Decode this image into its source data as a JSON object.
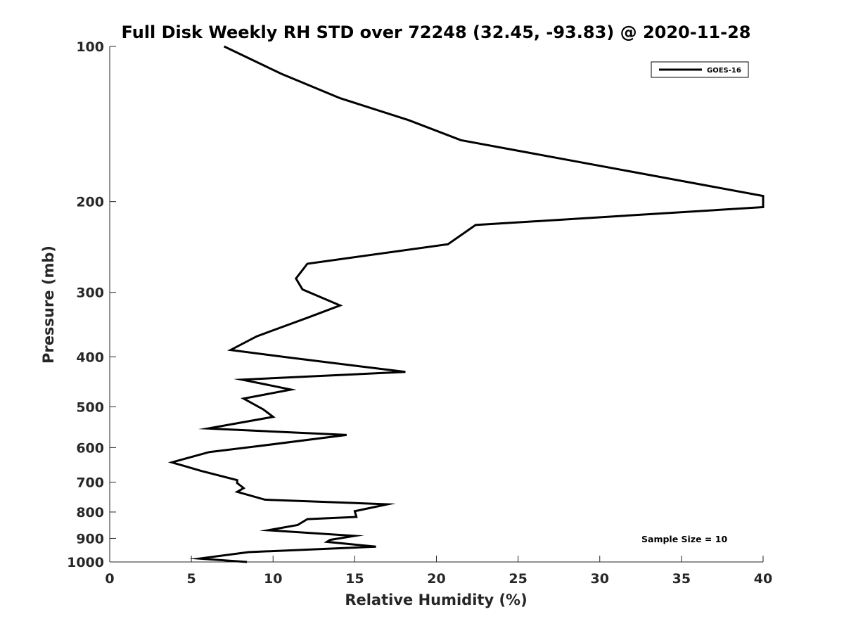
{
  "chart_data": {
    "type": "line",
    "title": "Full Disk Weekly RH STD over 72248 (32.45, -93.83) @ 2020-11-28",
    "xlabel": "Relative Humidity (%)",
    "ylabel": "Pressure (mb)",
    "xlim": [
      0,
      40
    ],
    "ylim": [
      100,
      1000
    ],
    "yscale": "log",
    "y_reversed": true,
    "x_ticks": [
      0,
      5,
      10,
      15,
      20,
      25,
      30,
      35,
      40
    ],
    "y_ticks": [
      100,
      200,
      300,
      400,
      500,
      600,
      700,
      800,
      900,
      1000
    ],
    "grid": false,
    "legend": {
      "position": "top-right",
      "entries": [
        "GOES-16"
      ]
    },
    "annotation": "Sample Size = 10",
    "series": [
      {
        "name": "GOES-16",
        "color": "#000000",
        "x": [
          7.0,
          10.5,
          14.1,
          18.3,
          21.5,
          40,
          40,
          22.4,
          20.7,
          12.1,
          11.4,
          11.8,
          14.1,
          12.1,
          9.0,
          7.4,
          10.9,
          18.1,
          8.1,
          11.1,
          8.2,
          9.4,
          10.0,
          6.0,
          14.5,
          9.1,
          6.1,
          3.8,
          5.6,
          7.8,
          7.8,
          8.2,
          7.8,
          9.5,
          17.0,
          15.0,
          15.1,
          12.1,
          11.5,
          9.7,
          15.0,
          13.5,
          13.3,
          16.3,
          8.5,
          5.5,
          8.4
        ],
        "y": [
          100,
          113,
          126,
          139,
          152,
          195,
          205,
          222,
          242,
          264,
          282,
          296,
          318,
          336,
          365,
          388,
          401,
          428,
          443,
          463,
          482,
          506,
          523,
          551,
          567,
          596,
          612,
          641,
          666,
          694,
          703,
          719,
          731,
          757,
          773,
          797,
          818,
          826,
          848,
          868,
          890,
          906,
          914,
          934,
          957,
          985,
          1000
        ]
      }
    ]
  }
}
